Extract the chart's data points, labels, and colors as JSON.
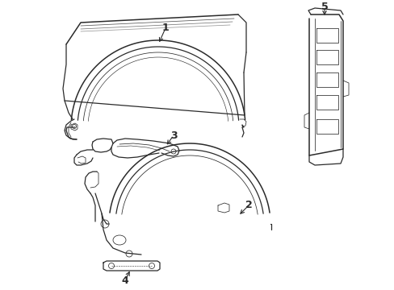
{
  "bg_color": "#ffffff",
  "line_color": "#2a2a2a",
  "label_color": "#000000",
  "figsize": [
    4.89,
    3.6
  ],
  "dpi": 100,
  "lw_main": 0.9,
  "lw_thin": 0.55,
  "lw_thick": 1.1
}
